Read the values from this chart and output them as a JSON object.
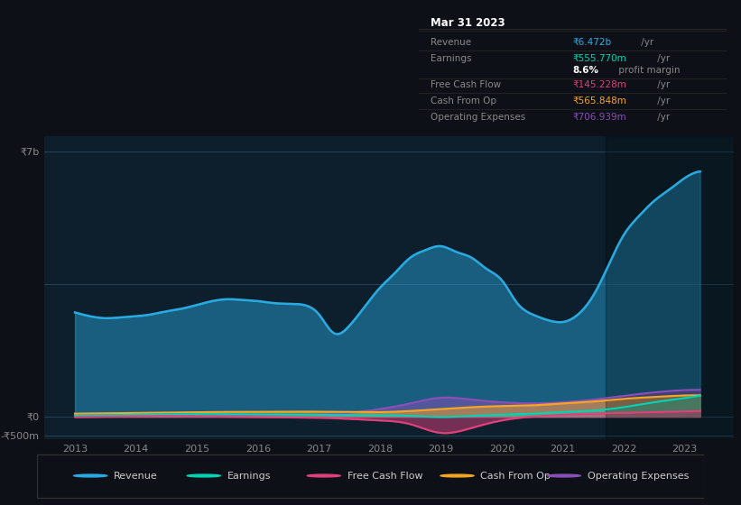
{
  "background_color": "#0d1117",
  "plot_bg_color": "#0d1f2d",
  "xlim": [
    2012.5,
    2023.8
  ],
  "ylim": [
    -600000000,
    7400000000
  ],
  "xticks": [
    2013,
    2014,
    2015,
    2016,
    2017,
    2018,
    2019,
    2020,
    2021,
    2022,
    2023
  ],
  "colors": {
    "revenue": "#29abe2",
    "earnings": "#00d4b4",
    "free_cash_flow": "#e0407b",
    "cash_from_op": "#f5a623",
    "operating_expenses": "#8b4fb8"
  },
  "revenue_x": [
    2013.0,
    2013.25,
    2013.5,
    2013.75,
    2014.0,
    2014.25,
    2014.5,
    2014.75,
    2015.0,
    2015.25,
    2015.5,
    2015.75,
    2016.0,
    2016.25,
    2016.5,
    2016.75,
    2017.0,
    2017.25,
    2017.5,
    2017.75,
    2018.0,
    2018.25,
    2018.5,
    2018.75,
    2019.0,
    2019.25,
    2019.5,
    2019.75,
    2020.0,
    2020.25,
    2020.5,
    2020.75,
    2021.0,
    2021.25,
    2021.5,
    2021.75,
    2022.0,
    2022.25,
    2022.5,
    2022.75,
    2023.0,
    2023.25
  ],
  "revenue_y": [
    2750000000,
    2650000000,
    2600000000,
    2620000000,
    2650000000,
    2700000000,
    2780000000,
    2850000000,
    2950000000,
    3050000000,
    3100000000,
    3080000000,
    3050000000,
    3000000000,
    2980000000,
    2950000000,
    2700000000,
    2200000000,
    2400000000,
    2900000000,
    3400000000,
    3800000000,
    4200000000,
    4400000000,
    4500000000,
    4350000000,
    4200000000,
    3900000000,
    3600000000,
    3000000000,
    2700000000,
    2550000000,
    2500000000,
    2700000000,
    3200000000,
    4000000000,
    4800000000,
    5300000000,
    5700000000,
    6000000000,
    6300000000,
    6472000000
  ],
  "earnings_x": [
    2013.0,
    2013.5,
    2014.0,
    2014.5,
    2015.0,
    2015.5,
    2016.0,
    2016.5,
    2017.0,
    2017.5,
    2018.0,
    2018.5,
    2019.0,
    2019.5,
    2020.0,
    2020.5,
    2021.0,
    2021.5,
    2022.0,
    2022.5,
    2023.0,
    2023.25
  ],
  "earnings_y": [
    30000000,
    40000000,
    50000000,
    60000000,
    70000000,
    65000000,
    60000000,
    55000000,
    50000000,
    45000000,
    40000000,
    20000000,
    -10000000,
    20000000,
    50000000,
    80000000,
    120000000,
    160000000,
    250000000,
    380000000,
    490000000,
    555770000
  ],
  "fcf_x": [
    2013.0,
    2013.5,
    2014.0,
    2014.5,
    2015.0,
    2015.5,
    2016.0,
    2016.5,
    2017.0,
    2017.5,
    2018.0,
    2018.5,
    2019.0,
    2019.5,
    2020.0,
    2020.5,
    2021.0,
    2021.5,
    2022.0,
    2022.5,
    2023.0,
    2023.25
  ],
  "fcf_y": [
    -10000000,
    0,
    10000000,
    15000000,
    10000000,
    0,
    -10000000,
    -20000000,
    -30000000,
    -60000000,
    -100000000,
    -200000000,
    -430000000,
    -300000000,
    -100000000,
    0,
    50000000,
    80000000,
    100000000,
    120000000,
    140000000,
    145228000
  ],
  "cfop_x": [
    2013.0,
    2013.5,
    2014.0,
    2014.5,
    2015.0,
    2015.5,
    2016.0,
    2016.5,
    2017.0,
    2017.5,
    2018.0,
    2018.5,
    2019.0,
    2019.5,
    2020.0,
    2020.5,
    2021.0,
    2021.5,
    2022.0,
    2022.5,
    2023.0,
    2023.25
  ],
  "cfop_y": [
    80000000,
    90000000,
    100000000,
    110000000,
    120000000,
    125000000,
    130000000,
    135000000,
    130000000,
    125000000,
    120000000,
    150000000,
    200000000,
    250000000,
    280000000,
    300000000,
    350000000,
    400000000,
    470000000,
    520000000,
    560000000,
    565848000
  ],
  "opex_x": [
    2013.0,
    2013.5,
    2014.0,
    2014.5,
    2015.0,
    2015.5,
    2016.0,
    2016.5,
    2017.0,
    2017.5,
    2018.0,
    2018.5,
    2019.0,
    2019.5,
    2020.0,
    2020.5,
    2021.0,
    2021.5,
    2022.0,
    2022.5,
    2023.0,
    2023.25
  ],
  "opex_y": [
    40000000,
    50000000,
    60000000,
    70000000,
    65000000,
    60000000,
    55000000,
    50000000,
    60000000,
    100000000,
    200000000,
    350000000,
    500000000,
    450000000,
    380000000,
    350000000,
    380000000,
    450000000,
    550000000,
    640000000,
    700000000,
    706939000
  ],
  "legend": [
    {
      "label": "Revenue",
      "color": "#29abe2"
    },
    {
      "label": "Earnings",
      "color": "#00d4b4"
    },
    {
      "label": "Free Cash Flow",
      "color": "#e0407b"
    },
    {
      "label": "Cash From Op",
      "color": "#f5a623"
    },
    {
      "label": "Operating Expenses",
      "color": "#8b4fb8"
    }
  ],
  "info_box_title": "Mar 31 2023",
  "info_rows": [
    {
      "label": "Revenue",
      "value": "₹6.472b",
      "suffix": " /yr",
      "color": "#29abe2",
      "divider": true
    },
    {
      "label": "Earnings",
      "value": "₹555.770m",
      "suffix": " /yr",
      "color": "#00d4b4",
      "divider": false
    },
    {
      "label": "",
      "value": "8.6%",
      "suffix": " profit margin",
      "color": "#ffffff",
      "bold": true,
      "divider": true
    },
    {
      "label": "Free Cash Flow",
      "value": "₹145.228m",
      "suffix": " /yr",
      "color": "#e0407b",
      "divider": true
    },
    {
      "label": "Cash From Op",
      "value": "₹565.848m",
      "suffix": " /yr",
      "color": "#f5a623",
      "divider": true
    },
    {
      "label": "Operating Expenses",
      "value": "₹706.939m",
      "suffix": " /yr",
      "color": "#8b4fb8",
      "divider": false
    }
  ]
}
